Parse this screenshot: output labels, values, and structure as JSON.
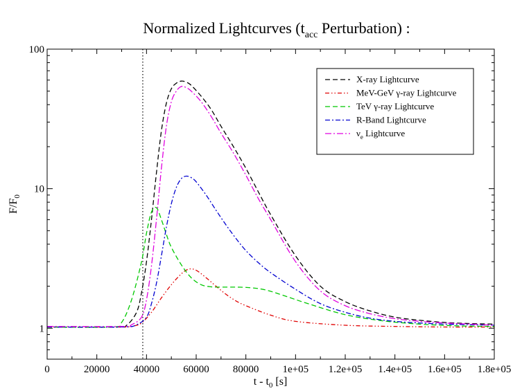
{
  "chart_data": {
    "type": "line",
    "title": {
      "main": "Normalized Lightcurves (t",
      "sub": "acc",
      "tail": " Perturbation) :"
    },
    "xlabel": {
      "main": "t - t",
      "sub": "0",
      "tail": " [s]"
    },
    "ylabel": {
      "main": "F/F",
      "sub": "0"
    },
    "x_scale": "linear",
    "y_scale": "log",
    "xlim": [
      0,
      180000
    ],
    "ylim": [
      0.6,
      100
    ],
    "x_ticks": [
      0,
      20000,
      40000,
      60000,
      80000,
      100000,
      120000,
      140000,
      160000,
      180000
    ],
    "x_tick_labels": [
      "0",
      "20000",
      "40000",
      "60000",
      "80000",
      "1e+05",
      "1.2e+05",
      "1.4e+05",
      "1.6e+05",
      "1.8e+05"
    ],
    "y_ticks": [
      1,
      10,
      100
    ],
    "y_tick_labels": [
      "1",
      "10",
      "100"
    ],
    "vline_x": 38500,
    "grid": false,
    "legend_position": "top-right",
    "series": [
      {
        "name": "X-ray Lightcurve",
        "color": "#000000",
        "dash": "7,4",
        "x": [
          0,
          28000,
          32000,
          36000,
          38000,
          40000,
          42000,
          44000,
          46000,
          48000,
          50000,
          52000,
          54000,
          56000,
          58000,
          62000,
          66000,
          70000,
          75000,
          80000,
          85000,
          90000,
          100000,
          110000,
          120000,
          130000,
          140000,
          150000,
          160000,
          170000,
          180000
        ],
        "y": [
          1.02,
          1.02,
          1.05,
          1.3,
          1.8,
          3.0,
          6.0,
          13.0,
          26.0,
          41.0,
          52.0,
          57.0,
          59.0,
          58.0,
          55.0,
          46.0,
          37.0,
          28.0,
          20.0,
          14.0,
          9.5,
          6.5,
          3.3,
          2.0,
          1.55,
          1.33,
          1.2,
          1.14,
          1.1,
          1.08,
          1.07
        ]
      },
      {
        "name": "MeV-GeV γ-ray Lightcurve",
        "color": "#e00000",
        "dash": "6,3,1.5,3,1.5,3",
        "x": [
          0,
          30000,
          35000,
          38000,
          42000,
          46000,
          50000,
          54000,
          57000,
          60000,
          64000,
          68000,
          72000,
          76000,
          80000,
          90000,
          100000,
          120000,
          140000,
          160000,
          180000
        ],
        "y": [
          1.02,
          1.02,
          1.04,
          1.09,
          1.3,
          1.65,
          2.05,
          2.45,
          2.65,
          2.6,
          2.3,
          2.0,
          1.75,
          1.57,
          1.45,
          1.24,
          1.12,
          1.05,
          1.03,
          1.02,
          1.02
        ]
      },
      {
        "name": "TeV γ-ray Lightcurve",
        "color": "#00c800",
        "dash": "7,4",
        "x": [
          0,
          26000,
          30000,
          34000,
          38000,
          40000,
          42000,
          44000,
          46000,
          48000,
          50000,
          54000,
          58000,
          62000,
          66000,
          70000,
          76000,
          82000,
          88000,
          95000,
          105000,
          120000,
          135000,
          150000,
          165000,
          180000
        ],
        "y": [
          1.02,
          1.02,
          1.1,
          1.6,
          3.0,
          4.8,
          6.8,
          7.3,
          6.0,
          4.7,
          3.8,
          2.85,
          2.3,
          2.05,
          1.98,
          1.97,
          1.97,
          1.95,
          1.88,
          1.72,
          1.5,
          1.25,
          1.13,
          1.07,
          1.04,
          1.03
        ]
      },
      {
        "name": "R-Band Lightcurve",
        "color": "#0000d0",
        "dash": "7,3,2,3",
        "x": [
          0,
          30000,
          36000,
          40000,
          42000,
          44000,
          46000,
          48000,
          50000,
          52000,
          54000,
          56000,
          58000,
          60000,
          64000,
          68000,
          72000,
          76000,
          80000,
          85000,
          90000,
          100000,
          110000,
          120000,
          130000,
          140000,
          150000,
          160000,
          170000,
          180000
        ],
        "y": [
          1.02,
          1.02,
          1.06,
          1.2,
          1.5,
          2.1,
          3.3,
          5.3,
          7.8,
          10.2,
          11.8,
          12.3,
          12.0,
          11.2,
          9.0,
          7.0,
          5.5,
          4.4,
          3.6,
          2.95,
          2.5,
          1.9,
          1.5,
          1.3,
          1.18,
          1.12,
          1.09,
          1.07,
          1.06,
          1.05
        ]
      },
      {
        "name": "ν_e Lightcurve",
        "name_main": "ν",
        "name_sub": "e",
        "name_tail": " Lightcurve",
        "color": "#e000e0",
        "dash": "9,3,2,3",
        "x": [
          0,
          30000,
          34000,
          38000,
          40000,
          42000,
          44000,
          46000,
          48000,
          50000,
          52000,
          54000,
          56000,
          58000,
          62000,
          66000,
          70000,
          75000,
          80000,
          85000,
          90000,
          100000,
          110000,
          120000,
          130000,
          140000,
          150000,
          160000,
          170000,
          180000
        ],
        "y": [
          1.03,
          1.03,
          1.06,
          1.2,
          1.6,
          2.8,
          6.0,
          14.0,
          28.0,
          42.0,
          50.0,
          54.0,
          53.0,
          50.0,
          42.0,
          33.0,
          25.0,
          18.0,
          12.5,
          8.5,
          6.0,
          3.0,
          1.85,
          1.45,
          1.27,
          1.17,
          1.12,
          1.09,
          1.07,
          1.05
        ]
      }
    ]
  }
}
